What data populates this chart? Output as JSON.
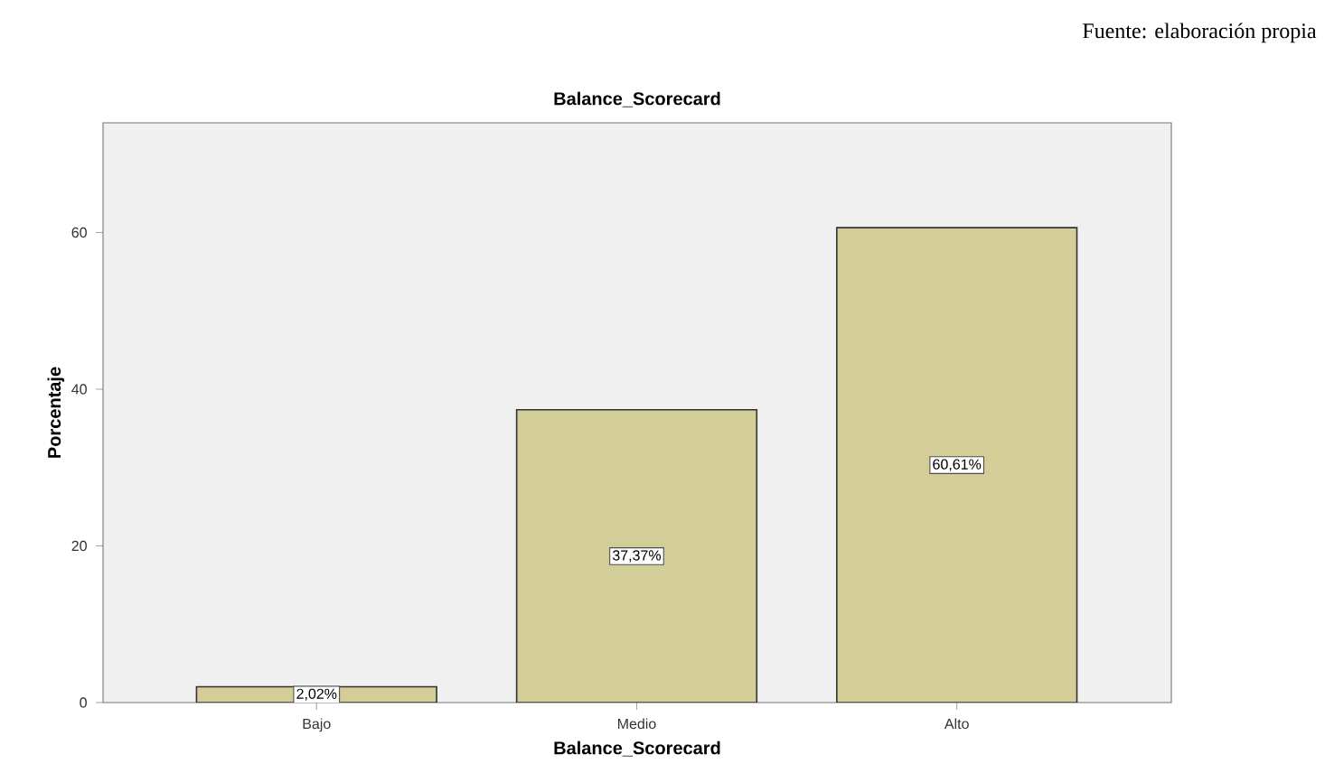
{
  "chart_data": {
    "type": "bar",
    "title": "Balance_Scorecard",
    "xlabel": "Balance_Scorecard",
    "ylabel": "Porcentaje",
    "categories": [
      "Bajo",
      "Medio",
      "Alto"
    ],
    "values": [
      2.02,
      37.37,
      60.61
    ],
    "value_labels": [
      "2,02%",
      "37,37%",
      "60,61%"
    ],
    "color": "#d3cd97",
    "ylim": [
      0,
      74
    ],
    "yticks": [
      0,
      20,
      40,
      60
    ],
    "grid": false,
    "annotations": [
      "Fuente: elaboración propia"
    ]
  }
}
